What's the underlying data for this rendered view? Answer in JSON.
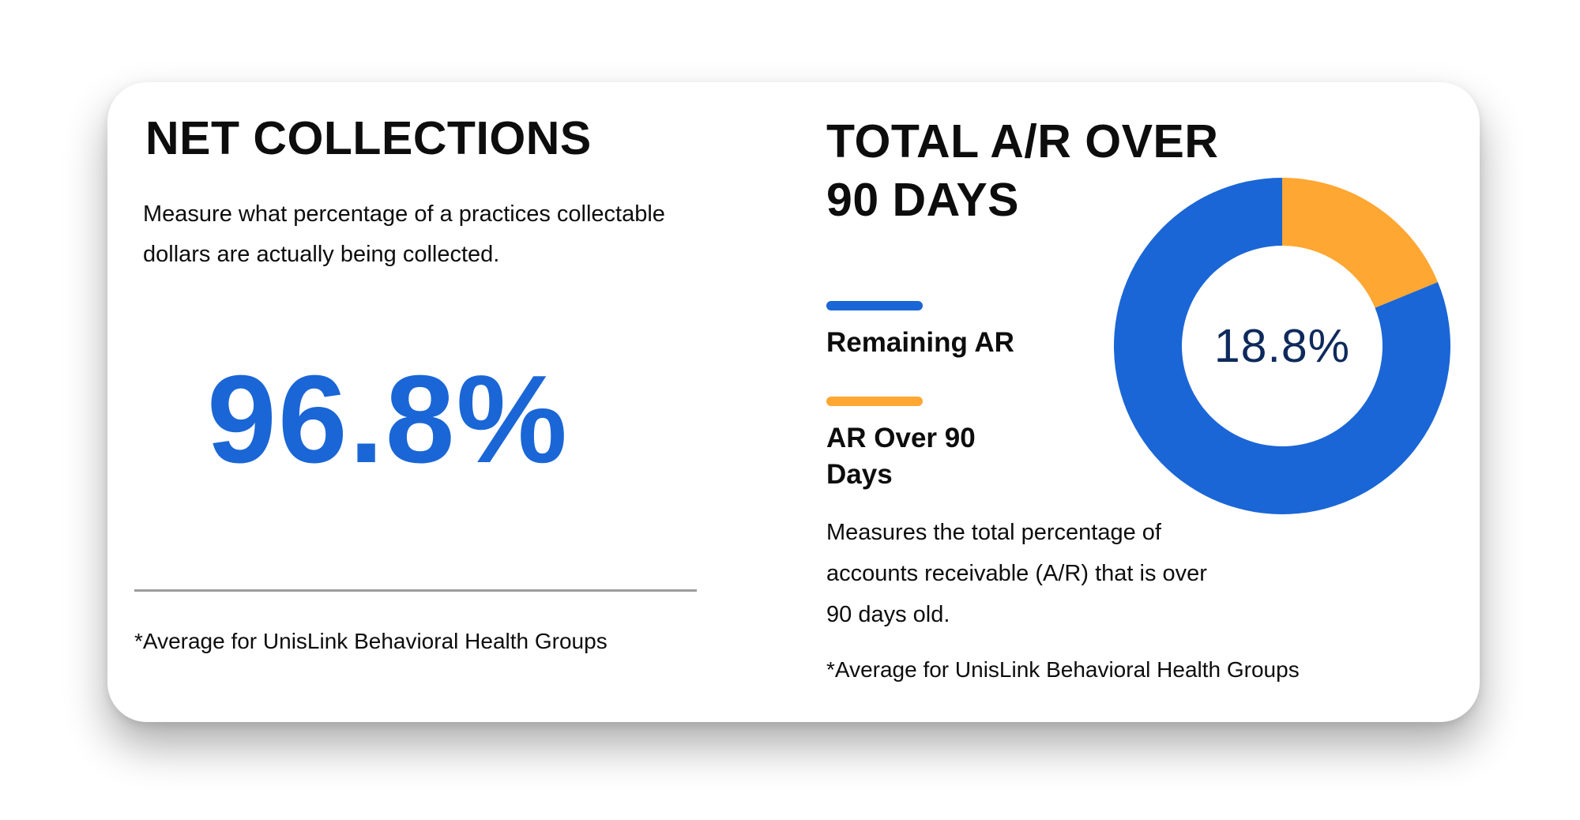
{
  "net_collections": {
    "title": "NET COLLECTIONS",
    "description": "Measure what percentage of a practices collectable dollars are actually being collected.",
    "value": "96.8%",
    "footnote": "*Average for UnisLink Behavioral Health Groups"
  },
  "ar_over_90": {
    "title": "TOTAL A/R OVER 90 DAYS",
    "center_label": "18.8%",
    "description": "Measures the total percentage of accounts receivable (A/R) that is over 90 days old.",
    "footnote": "*Average for UnisLink Behavioral Health Groups"
  },
  "colors": {
    "blue": "#1a66d6",
    "orange": "#ffa733",
    "dark_text": "#0e2a5c"
  },
  "chart_data": {
    "type": "pie",
    "donut": true,
    "legend": "left",
    "series": [
      {
        "name": "Remaining AR",
        "value": 81.2,
        "color": "#1a66d6"
      },
      {
        "name": "AR Over 90 Days",
        "value": 18.8,
        "color": "#ffa733"
      }
    ]
  }
}
